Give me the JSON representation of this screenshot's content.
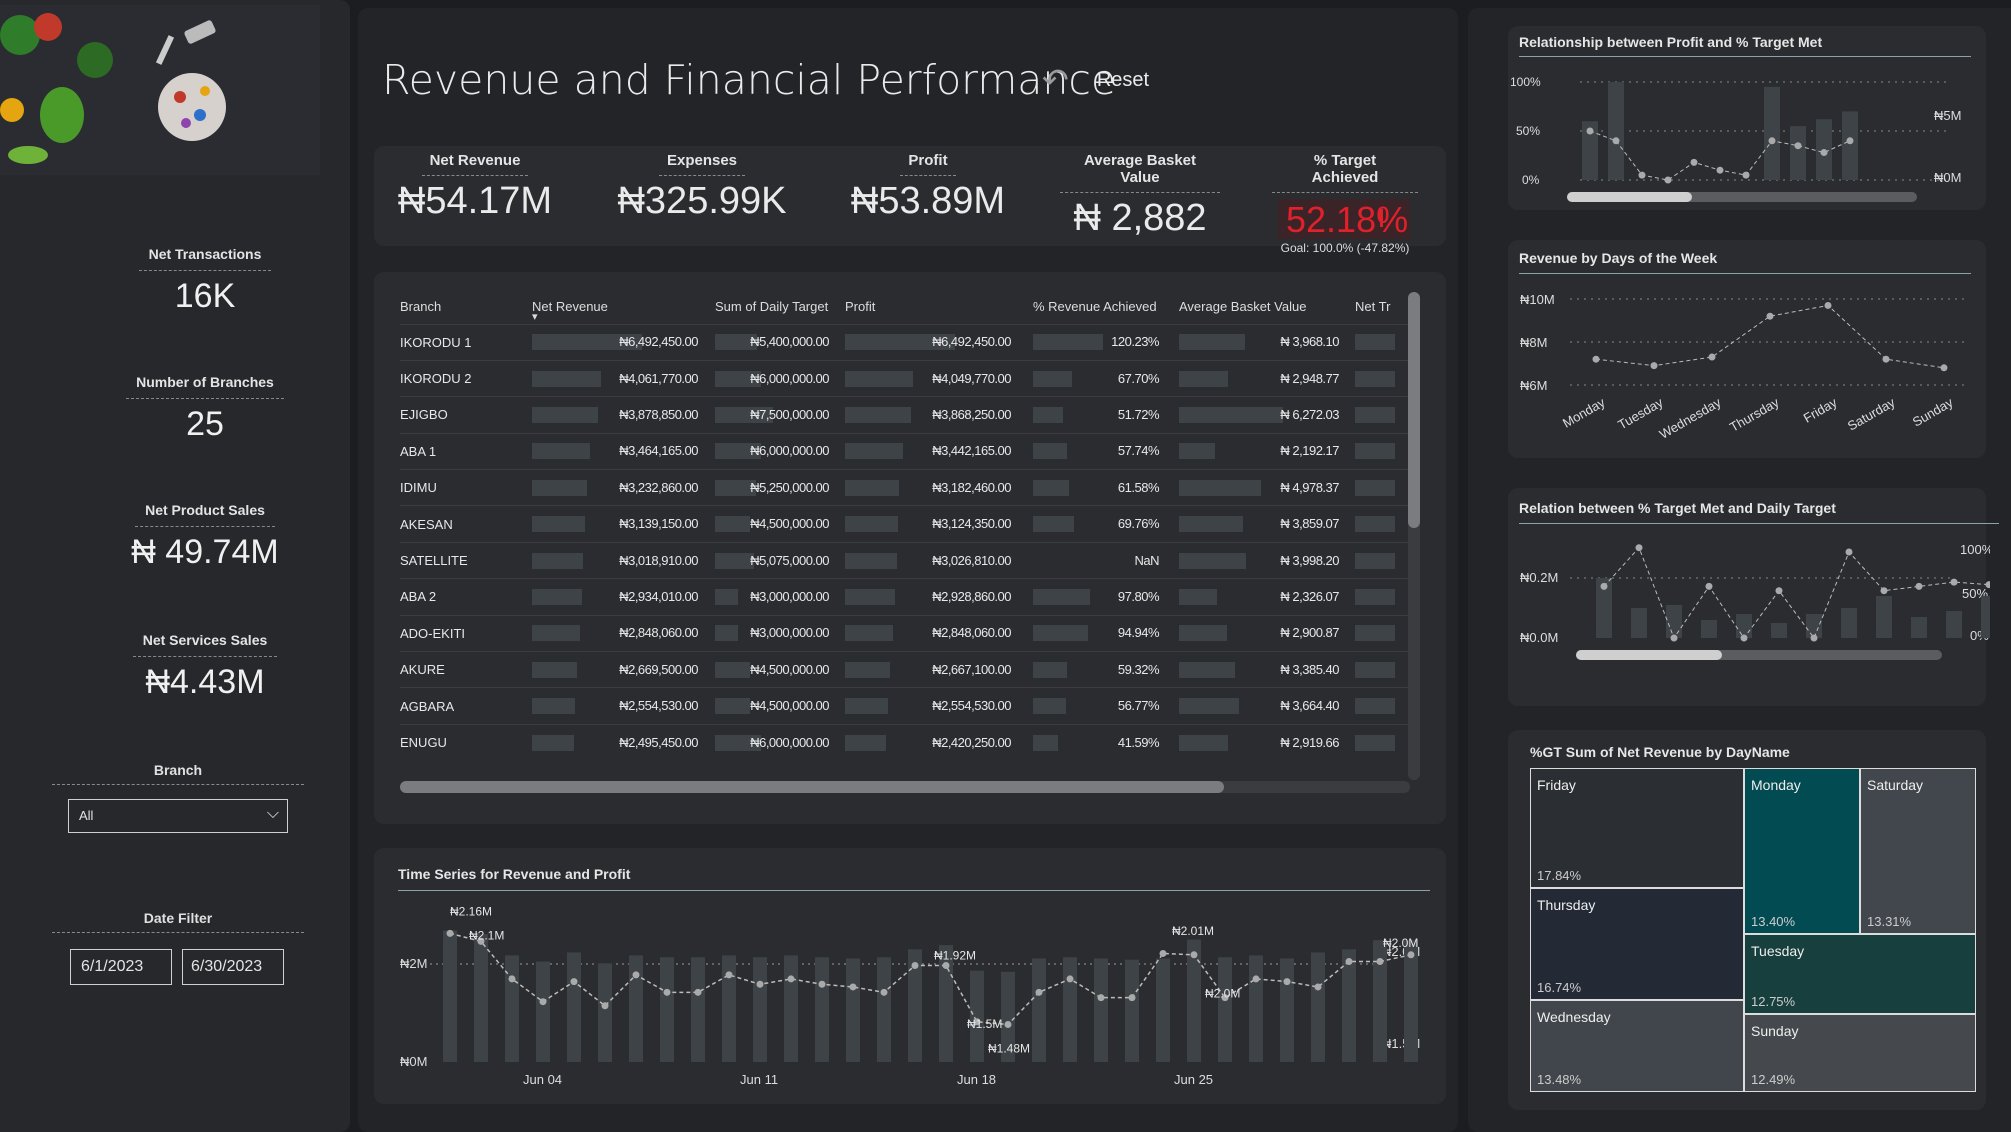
{
  "sidebar": {
    "stats": [
      {
        "label": "Net Transactions",
        "value": "16K"
      },
      {
        "label": "Number of Branches",
        "value": "25"
      },
      {
        "label": "Net Product Sales",
        "value": "₦ 49.74M"
      },
      {
        "label": "Net Services Sales",
        "value": "₦4.43M"
      }
    ],
    "branch_label": "Branch",
    "branch_value": "All",
    "date_label": "Date Filter",
    "date_start": "6/1/2023",
    "date_end": "6/30/2023"
  },
  "header": {
    "title": "Revenue and Financial Performance",
    "reset_label": "Reset"
  },
  "kpis": [
    {
      "label": "Net Revenue",
      "value": "₦54.17M"
    },
    {
      "label": "Expenses",
      "value": "₦325.99K"
    },
    {
      "label": "Profit",
      "value": "₦53.89M"
    },
    {
      "label": "Average Basket Value",
      "value": "₦ 2,882"
    },
    {
      "label": "% Target Achieved",
      "value": "52.18%",
      "goal": "Goal: 100.0% (-47.82%)"
    }
  ],
  "table": {
    "columns": [
      "Branch",
      "Net Revenue",
      "Sum of Daily Target",
      "Profit",
      "% Revenue Achieved",
      "Average Basket Value",
      "Net Tr"
    ],
    "rows": [
      {
        "branch": "IKORODU 1",
        "revenue": "₦6,492,450.00",
        "target": "₦5,400,000.00",
        "profit": "₦6,492,450.00",
        "pct": "120.23%",
        "abv": "₦ 3,968.10",
        "rv": 1.0,
        "tv": 0.72,
        "pv": 1.0,
        "pcv": 1.0,
        "av": 0.63
      },
      {
        "branch": "IKORODU 2",
        "revenue": "₦4,061,770.00",
        "target": "₦6,000,000.00",
        "profit": "₦4,049,770.00",
        "pct": "67.70%",
        "abv": "₦ 2,948.77",
        "rv": 0.63,
        "tv": 0.8,
        "pv": 0.62,
        "pcv": 0.56,
        "av": 0.47
      },
      {
        "branch": "EJIGBO",
        "revenue": "₦3,878,850.00",
        "target": "₦7,500,000.00",
        "profit": "₦3,868,250.00",
        "pct": "51.72%",
        "abv": "₦ 6,272.03",
        "rv": 0.6,
        "tv": 1.0,
        "pv": 0.6,
        "pcv": 0.43,
        "av": 1.0
      },
      {
        "branch": "ABA 1",
        "revenue": "₦3,464,165.00",
        "target": "₦6,000,000.00",
        "profit": "₦3,442,165.00",
        "pct": "57.74%",
        "abv": "₦ 2,192.17",
        "rv": 0.53,
        "tv": 0.8,
        "pv": 0.53,
        "pcv": 0.48,
        "av": 0.35
      },
      {
        "branch": "IDIMU",
        "revenue": "₦3,232,860.00",
        "target": "₦5,250,000.00",
        "profit": "₦3,182,460.00",
        "pct": "61.58%",
        "abv": "₦ 4,978.37",
        "rv": 0.5,
        "tv": 0.7,
        "pv": 0.49,
        "pcv": 0.51,
        "av": 0.79
      },
      {
        "branch": "AKESAN",
        "revenue": "₦3,139,150.00",
        "target": "₦4,500,000.00",
        "profit": "₦3,124,350.00",
        "pct": "69.76%",
        "abv": "₦ 3,859.07",
        "rv": 0.48,
        "tv": 0.6,
        "pv": 0.48,
        "pcv": 0.58,
        "av": 0.62
      },
      {
        "branch": "SATELLITE",
        "revenue": "₦3,018,910.00",
        "target": "₦5,075,000.00",
        "profit": "₦3,026,810.00",
        "pct": "NaN",
        "abv": "₦ 3,998.20",
        "rv": 0.46,
        "tv": 0.68,
        "pv": 0.47,
        "pcv": 0.0,
        "av": 0.64
      },
      {
        "branch": "ABA 2",
        "revenue": "₦2,934,010.00",
        "target": "₦3,000,000.00",
        "profit": "₦2,928,860.00",
        "pct": "97.80%",
        "abv": "₦ 2,326.07",
        "rv": 0.45,
        "tv": 0.4,
        "pv": 0.45,
        "pcv": 0.81,
        "av": 0.37
      },
      {
        "branch": "ADO-EKITI",
        "revenue": "₦2,848,060.00",
        "target": "₦3,000,000.00",
        "profit": "₦2,848,060.00",
        "pct": "94.94%",
        "abv": "₦ 2,900.87",
        "rv": 0.44,
        "tv": 0.4,
        "pv": 0.44,
        "pcv": 0.79,
        "av": 0.46
      },
      {
        "branch": "AKURE",
        "revenue": "₦2,669,500.00",
        "target": "₦4,500,000.00",
        "profit": "₦2,667,100.00",
        "pct": "59.32%",
        "abv": "₦ 3,385.40",
        "rv": 0.41,
        "tv": 0.6,
        "pv": 0.41,
        "pcv": 0.49,
        "av": 0.54
      },
      {
        "branch": "AGBARA",
        "revenue": "₦2,554,530.00",
        "target": "₦4,500,000.00",
        "profit": "₦2,554,530.00",
        "pct": "56.77%",
        "abv": "₦ 3,664.40",
        "rv": 0.39,
        "tv": 0.6,
        "pv": 0.39,
        "pcv": 0.47,
        "av": 0.58
      },
      {
        "branch": "ENUGU",
        "revenue": "₦2,495,450.00",
        "target": "₦6,000,000.00",
        "profit": "₦2,420,250.00",
        "pct": "41.59%",
        "abv": "₦ 2,919.66",
        "rv": 0.38,
        "tv": 0.8,
        "pv": 0.37,
        "pcv": 0.35,
        "av": 0.47
      }
    ]
  },
  "chart_data": [
    {
      "type": "bar",
      "title": "Time Series for Revenue and Profit",
      "x_ticks": [
        "Jun 04",
        "Jun 11",
        "Jun 18",
        "Jun 25"
      ],
      "y_left_ticks": [
        "₦0M",
        "₦2M"
      ],
      "y_right_ticks": [
        "₦1.5M",
        "₦2.0M"
      ],
      "point_labels": [
        "₦2.16M",
        "₦2.1M",
        "₦1.92M",
        "₦1.5M",
        "₦1.48M",
        "₦2.01M",
        "₦2.0M",
        "₦2.0M"
      ],
      "bars_millions": [
        2.16,
        2.1,
        1.75,
        1.65,
        1.8,
        1.62,
        1.75,
        1.72,
        1.72,
        1.75,
        1.72,
        1.75,
        1.72,
        1.7,
        1.72,
        1.85,
        1.92,
        1.5,
        1.48,
        1.7,
        1.72,
        1.7,
        1.68,
        1.7,
        2.01,
        1.72,
        1.75,
        1.7,
        1.8,
        1.85,
        2.0,
        2.0
      ],
      "line_millions": [
        2.16,
        2.1,
        1.82,
        1.65,
        1.8,
        1.62,
        1.85,
        1.72,
        1.72,
        1.85,
        1.78,
        1.82,
        1.78,
        1.76,
        1.72,
        1.92,
        1.92,
        1.5,
        1.48,
        1.72,
        1.82,
        1.68,
        1.68,
        2.01,
        2.0,
        1.68,
        1.82,
        1.8,
        1.76,
        1.95,
        1.95,
        2.0
      ]
    },
    {
      "type": "bar",
      "title": "Relationship between Profit and  % Target Met",
      "y_left_ticks": [
        "0%",
        "50%",
        "100%"
      ],
      "y_right_ticks": [
        "₦0M",
        "₦5M"
      ],
      "bars_pct": [
        60,
        100,
        0,
        0,
        0,
        0,
        0,
        95,
        55,
        62,
        70
      ],
      "line_pct": [
        50,
        40,
        5,
        0,
        18,
        10,
        5,
        40,
        35,
        28,
        40
      ]
    },
    {
      "type": "line",
      "title": "Revenue by Days of the Week",
      "categories": [
        "Monday",
        "Tuesday",
        "Wednesday",
        "Thursday",
        "Friday",
        "Saturday",
        "Sunday"
      ],
      "values_millions": [
        7.2,
        6.9,
        7.3,
        9.2,
        9.7,
        7.2,
        6.8
      ],
      "y_ticks": [
        "₦6M",
        "₦8M",
        "₦10M"
      ]
    },
    {
      "type": "bar",
      "title": "Relation between % Target Met and Daily Target",
      "y_left_ticks": [
        "₦0.0M",
        "₦0.2M"
      ],
      "y_right_ticks": [
        "0%",
        "50%",
        "100%"
      ],
      "bars_pct": [
        100,
        50,
        55,
        30,
        40,
        25,
        40,
        50,
        70,
        35,
        45,
        70,
        70
      ],
      "line_pct": [
        60,
        105,
        0,
        60,
        0,
        55,
        0,
        100,
        55,
        60,
        65,
        62,
        60
      ]
    },
    {
      "type": "treemap",
      "title": "%GT Sum of Net Revenue by DayName",
      "cells": [
        {
          "name": "Friday",
          "pct": "17.84%",
          "color": "#2b2e33"
        },
        {
          "name": "Thursday",
          "pct": "16.74%",
          "color": "#232a36"
        },
        {
          "name": "Wednesday",
          "pct": "13.48%",
          "color": "#40464b"
        },
        {
          "name": "Monday",
          "pct": "13.40%",
          "color": "#034b52"
        },
        {
          "name": "Saturday",
          "pct": "13.31%",
          "color": "#41474d"
        },
        {
          "name": "Tuesday",
          "pct": "12.75%",
          "color": "#163f3d"
        },
        {
          "name": "Sunday",
          "pct": "12.49%",
          "color": "#45494d"
        }
      ]
    }
  ],
  "colors": {
    "background": "#1c1d20",
    "panel": "#25272b",
    "bar": "#3e4347",
    "alert": "#e0202a",
    "teal": "#034b52"
  },
  "icons": {
    "reset": "undo-arrow-icon",
    "dropdown": "chevron-down-icon"
  }
}
